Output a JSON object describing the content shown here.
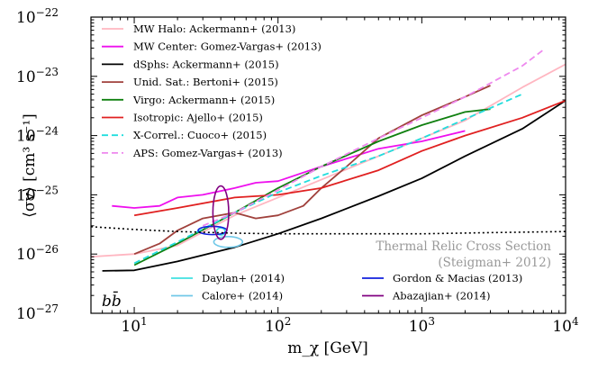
{
  "chart_data": {
    "type": "line",
    "title": "",
    "xlabel": "m_χ [GeV]",
    "ylabel": "⟨σv⟩ [cm³ s⁻¹]",
    "xscale": "log",
    "yscale": "log",
    "xlim": [
      5,
      10000
    ],
    "ylim": [
      1e-27,
      1e-22
    ],
    "x_ticks": [
      {
        "value": 10,
        "base": "10",
        "exp": "1"
      },
      {
        "value": 100,
        "base": "10",
        "exp": "2"
      },
      {
        "value": 1000,
        "base": "10",
        "exp": "3"
      },
      {
        "value": 10000,
        "base": "10",
        "exp": "4"
      }
    ],
    "y_ticks": [
      {
        "value": 1e-27,
        "base": "10",
        "exp": "−27"
      },
      {
        "value": 1e-26,
        "base": "10",
        "exp": "−26"
      },
      {
        "value": 1e-25,
        "base": "10",
        "exp": "−25"
      },
      {
        "value": 1e-24,
        "base": "10",
        "exp": "−24"
      },
      {
        "value": 1e-23,
        "base": "10",
        "exp": "−23"
      },
      {
        "value": 1e-22,
        "base": "10",
        "exp": "−22"
      }
    ],
    "series": [
      {
        "name": "MW Halo: Ackermann+ (2013)",
        "color": "#ffb6c1",
        "dash": "solid",
        "x": [
          5,
          10,
          20,
          50,
          100,
          200,
          500,
          1000,
          2000,
          5000,
          10000
        ],
        "y": [
          9e-27,
          1e-26,
          1.4e-26,
          4.5e-26,
          9e-26,
          1.8e-25,
          4.5e-25,
          9e-25,
          1.8e-24,
          6.5e-24,
          1.6e-23
        ]
      },
      {
        "name": "MW Center: Gomez-Vargas+ (2013)",
        "color": "#ee10ee",
        "dash": "solid",
        "x": [
          7,
          10,
          15,
          20,
          30,
          50,
          70,
          100,
          200,
          500,
          1000,
          2000
        ],
        "y": [
          6.5e-26,
          6e-26,
          6.5e-26,
          9e-26,
          1e-25,
          1.3e-25,
          1.6e-25,
          1.7e-25,
          3e-25,
          6e-25,
          8e-25,
          1.2e-24
        ]
      },
      {
        "name": "dSphs: Ackermann+ (2015)",
        "color": "#000000",
        "dash": "solid",
        "x": [
          6,
          10,
          20,
          50,
          100,
          200,
          500,
          1000,
          2000,
          5000,
          10000
        ],
        "y": [
          5.2e-27,
          5.3e-27,
          7.5e-27,
          1.3e-26,
          2.2e-26,
          4e-26,
          9.5e-26,
          1.9e-25,
          4.5e-25,
          1.3e-24,
          3.9e-24
        ]
      },
      {
        "name": "Unid. Sat.: Bertoni+ (2015)",
        "color": "#a0413c",
        "dash": "solid",
        "x": [
          10,
          15,
          20,
          30,
          50,
          70,
          100,
          150,
          200,
          300,
          500,
          1000,
          2000,
          3000
        ],
        "y": [
          1e-26,
          1.5e-26,
          2.5e-26,
          4e-26,
          5e-26,
          4e-26,
          4.5e-26,
          6.5e-26,
          1.3e-25,
          3e-25,
          9e-25,
          2.2e-24,
          4.5e-24,
          7e-24
        ]
      },
      {
        "name": "Virgo: Ackermann+ (2015)",
        "color": "#108010",
        "dash": "solid",
        "x": [
          10,
          20,
          50,
          100,
          200,
          500,
          1000,
          2000,
          3000
        ],
        "y": [
          6.5e-27,
          1.5e-26,
          5e-26,
          1.3e-25,
          3e-25,
          8e-25,
          1.5e-24,
          2.5e-24,
          2.8e-24
        ]
      },
      {
        "name": "Isotropic: Ajello+ (2015)",
        "color": "#e02020",
        "dash": "solid",
        "x": [
          10,
          20,
          50,
          100,
          200,
          500,
          1000,
          2000,
          5000,
          10000
        ],
        "y": [
          4.5e-26,
          6e-26,
          9e-26,
          1e-25,
          1.3e-25,
          2.6e-25,
          5.5e-25,
          1e-24,
          2e-24,
          3.9e-24
        ]
      },
      {
        "name": "X-Correl.: Cuoco+ (2015)",
        "color": "#22dddd",
        "dash": "dashed",
        "x": [
          10,
          20,
          50,
          100,
          200,
          500,
          1000,
          2000,
          5000
        ],
        "y": [
          7e-27,
          1.6e-26,
          5e-26,
          1.1e-25,
          2.1e-25,
          4.5e-25,
          9e-25,
          1.9e-24,
          5e-24
        ]
      },
      {
        "name": "APS: Gomez-Vargas+ (2013)",
        "color": "#ee88ee",
        "dash": "dashed",
        "x": [
          30,
          50,
          100,
          200,
          500,
          1000,
          2000,
          5000,
          7000
        ],
        "y": [
          3e-26,
          5e-26,
          1.2e-25,
          3e-25,
          9e-25,
          2e-24,
          4.5e-24,
          1.5e-23,
          2.8e-23
        ]
      }
    ],
    "regions": [
      {
        "name": "Daylan+ (2014)",
        "color": "#40e0e0",
        "cx": 40,
        "cy": 2.4e-26,
        "rx": 0.03,
        "ry": 0.06
      },
      {
        "name": "Gordon & Macias (2013)",
        "color": "#1020dd",
        "cx": 35,
        "cy": 2.5e-26,
        "rx": 0.1,
        "ry": 0.07
      },
      {
        "name": "Calore+ (2014)",
        "color": "#70c8e8",
        "cx": 45,
        "cy": 1.6e-26,
        "rx": 0.1,
        "ry": 0.09
      },
      {
        "name": "Abazajian+ (2014)",
        "color": "#800080",
        "cx": 40,
        "cy": 5e-26,
        "rx": 0.055,
        "ry": 0.45
      }
    ],
    "reference_line": {
      "name": "Thermal Relic Cross Section",
      "source": "(Steigman+ 2012)",
      "x": [
        5,
        10,
        20,
        50,
        100,
        200,
        500,
        1000,
        3000,
        10000
      ],
      "y": [
        2.9e-26,
        2.6e-26,
        2.4e-26,
        2.25e-26,
        2.2e-26,
        2.2e-26,
        2.2e-26,
        2.2e-26,
        2.3e-26,
        2.4e-26
      ]
    },
    "annotation": "bb̄",
    "legend_position": "top-left",
    "region_legend_position": "bottom-center"
  }
}
